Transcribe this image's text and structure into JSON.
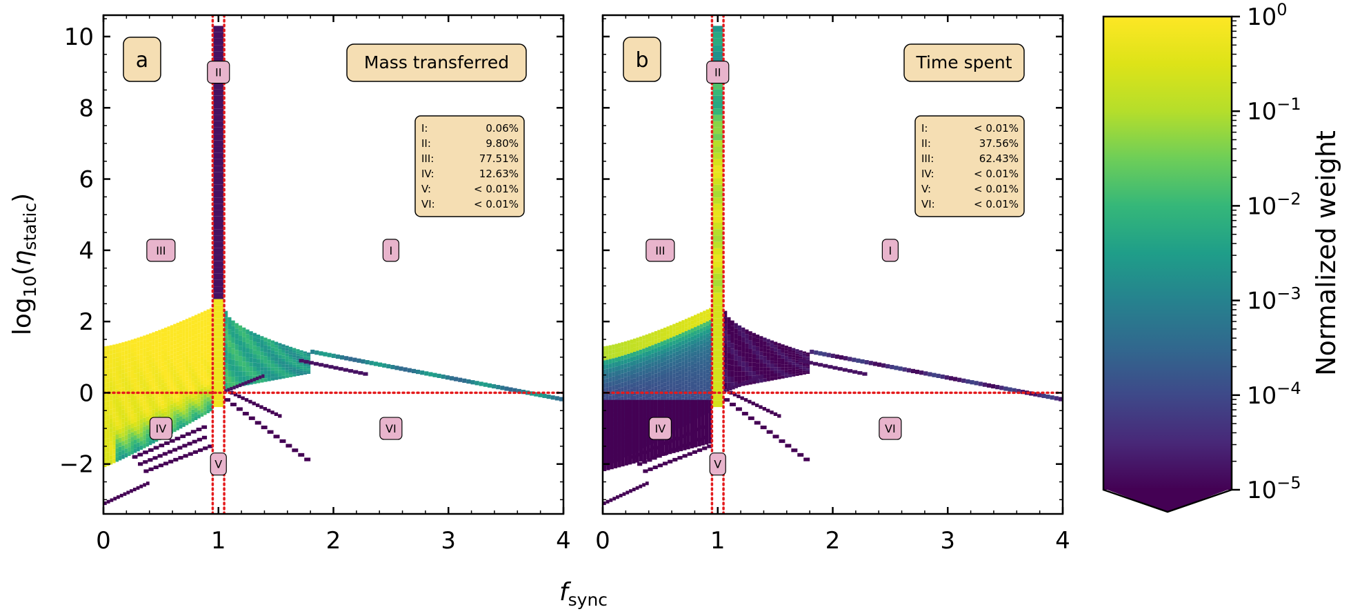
{
  "chart_data": {
    "type": "heatmap",
    "xlabel_main": "f",
    "xlabel_sub": "sync",
    "ylabel_prefix": "log",
    "ylabel_base": "10",
    "ylabel_open": "(",
    "ylabel_var": "η",
    "ylabel_sub": "static",
    "ylabel_close": ")",
    "xlim": [
      0,
      4
    ],
    "ylim": [
      -3.4,
      10.6
    ],
    "xticks": [
      0,
      1,
      2,
      3,
      4
    ],
    "xtick_labels": [
      "0",
      "1",
      "2",
      "3",
      "4"
    ],
    "yticks": [
      -2,
      0,
      2,
      4,
      6,
      8,
      10
    ],
    "ytick_labels": [
      "−2",
      "0",
      "2",
      "4",
      "6",
      "8",
      "10"
    ],
    "reference_lines": {
      "vertical_x": [
        0.95,
        1.05
      ],
      "horizontal_y": [
        0
      ],
      "color": "#e41a1c",
      "style": "dotted"
    },
    "colormap": "viridis",
    "colorbar": {
      "label": "Normalized weight",
      "scale": "log",
      "range": [
        1e-05,
        1
      ],
      "extend": "min",
      "tick_values": [
        0,
        -1,
        -2,
        -3,
        -4,
        -5
      ],
      "tick_base": "10",
      "tick_exponents": [
        "0",
        "−1",
        "−2",
        "−3",
        "−4",
        "−5"
      ]
    },
    "region_labels": [
      {
        "text": "I",
        "x": 2.5,
        "y": 4
      },
      {
        "text": "II",
        "x": 1.0,
        "y": 9
      },
      {
        "text": "III",
        "x": 0.5,
        "y": 4
      },
      {
        "text": "IV",
        "x": 0.5,
        "y": -1
      },
      {
        "text": "V",
        "x": 1.0,
        "y": -2
      },
      {
        "text": "VI",
        "x": 2.5,
        "y": -1
      }
    ],
    "panels": [
      {
        "letter": "a",
        "title": "Mass transferred",
        "stats": [
          {
            "region": "I:",
            "value": "0.06%"
          },
          {
            "region": "II:",
            "value": "9.80%"
          },
          {
            "region": "III:",
            "value": "77.51%"
          },
          {
            "region": "IV:",
            "value": "12.63%"
          },
          {
            "region": "V:",
            "value": "< 0.01%"
          },
          {
            "region": "VI:",
            "value": "< 0.01%"
          }
        ],
        "approx_log10_weight": {
          "band_low_fsync_branch": -0.3,
          "band_near_fsync_1": -0.2,
          "spike_fsync_1_high_eta": -4.8,
          "right_lobe_fsync_1_to_1_8": -2.7,
          "thin_tail_to_fsync_4": -3.0,
          "lower_stripes": -5
        }
      },
      {
        "letter": "b",
        "title": "Time spent",
        "stats": [
          {
            "region": "I:",
            "value": "< 0.01%"
          },
          {
            "region": "II:",
            "value": "37.56%"
          },
          {
            "region": "III:",
            "value": "62.43%"
          },
          {
            "region": "IV:",
            "value": "< 0.01%"
          },
          {
            "region": "V:",
            "value": "< 0.01%"
          },
          {
            "region": "VI:",
            "value": "< 0.01%"
          }
        ],
        "approx_log10_weight": {
          "band_low_fsync_branch": -3.8,
          "band_upper_edge": -0.4,
          "spike_fsync_1_high_eta": -1.5,
          "right_lobe_fsync_1_to_1_8": -5,
          "thin_tail_to_fsync_4": -4.5,
          "lower_stripes": -5
        }
      }
    ]
  }
}
